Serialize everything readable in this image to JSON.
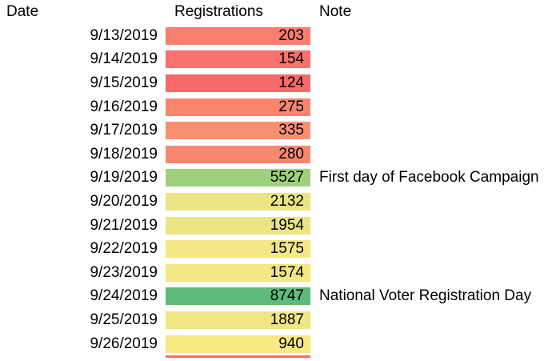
{
  "table": {
    "headers": {
      "date": "Date",
      "registrations": "Registrations",
      "note": "Note"
    },
    "rows": [
      {
        "date": "9/13/2019",
        "value": 203,
        "color": "#F87E6D",
        "note": ""
      },
      {
        "date": "9/14/2019",
        "value": 154,
        "color": "#F8716C",
        "note": ""
      },
      {
        "date": "9/15/2019",
        "value": 124,
        "color": "#F8696B",
        "note": ""
      },
      {
        "date": "9/16/2019",
        "value": 275,
        "color": "#F9856F",
        "note": ""
      },
      {
        "date": "9/17/2019",
        "value": 335,
        "color": "#FA8F70",
        "note": ""
      },
      {
        "date": "9/18/2019",
        "value": 280,
        "color": "#F98770",
        "note": ""
      },
      {
        "date": "9/19/2019",
        "value": 5527,
        "color": "#A0D07E",
        "note": "First day of Facebook Campaign"
      },
      {
        "date": "9/20/2019",
        "value": 2132,
        "color": "#E9E584",
        "note": ""
      },
      {
        "date": "9/21/2019",
        "value": 1954,
        "color": "#EAE584",
        "note": ""
      },
      {
        "date": "9/22/2019",
        "value": 1575,
        "color": "#F3E883",
        "note": ""
      },
      {
        "date": "9/23/2019",
        "value": 1574,
        "color": "#F3E883",
        "note": ""
      },
      {
        "date": "9/24/2019",
        "value": 8747,
        "color": "#5EBB7C",
        "note": "National Voter Registration Day"
      },
      {
        "date": "9/25/2019",
        "value": 1887,
        "color": "#F0E684",
        "note": ""
      },
      {
        "date": "9/26/2019",
        "value": 940,
        "color": "#FAE880",
        "note": ""
      }
    ],
    "partial_next_row_color": "#F86C6B",
    "color_scale": {
      "low": "#F8696B",
      "mid": "#FFEB84",
      "high": "#63BE7B"
    }
  }
}
